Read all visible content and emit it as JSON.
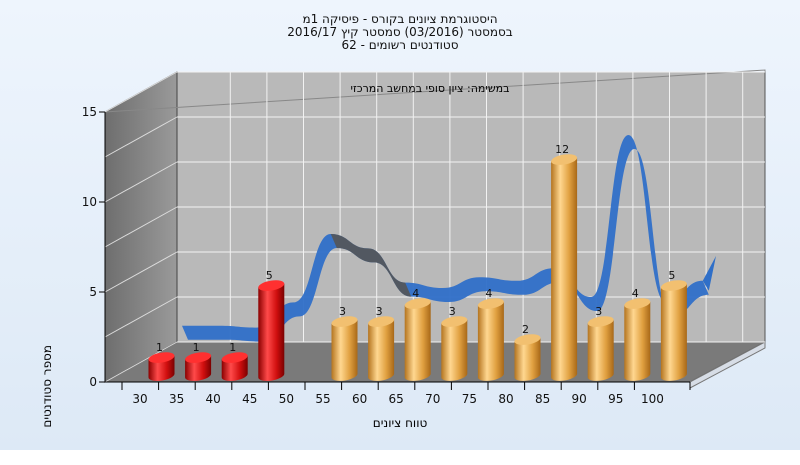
{
  "chart_data": {
    "type": "bar",
    "title": "היסטוגרמת ציונים בקורס - פיסיקה 1מ",
    "subtitle_lines": [
      "בסמסטר  (03/2016)  סמסטר קיץ 2016/17",
      "סטודנטים רשומים - 62"
    ],
    "annotation": "במשימה: ציון סופי במחשב המרכזי",
    "xlabel": "טווח ציונים",
    "ylabel": "מספר סטודנטים",
    "ylim": [
      0,
      15
    ],
    "yticks": [
      0,
      5,
      10,
      15
    ],
    "categories": [
      "30",
      "35",
      "40",
      "45",
      "50",
      "55",
      "60",
      "65",
      "70",
      "75",
      "80",
      "85",
      "90",
      "95",
      "100"
    ],
    "values": [
      1,
      1,
      1,
      5,
      null,
      3,
      3,
      4,
      3,
      4,
      2,
      12,
      3,
      4,
      5
    ],
    "bar_colors": [
      "#e11919",
      "#e11919",
      "#e11919",
      "#e11919",
      "",
      "#e8a94a",
      "#e8a94a",
      "#e8a94a",
      "#e8a94a",
      "#e8a94a",
      "#e8a94a",
      "#e8a94a",
      "#e8a94a",
      "#e8a94a",
      "#e8a94a"
    ],
    "curve": {
      "x": [
        30,
        35,
        40,
        45,
        50,
        55,
        60,
        65,
        70,
        75,
        80,
        85,
        90,
        95,
        100
      ],
      "y": [
        0.9,
        0.9,
        0.8,
        2.2,
        6.0,
        5.2,
        3.3,
        3.0,
        3.6,
        3.4,
        4.1,
        2.5,
        11.5,
        2.2,
        3.4
      ],
      "color": "#2f6fc8",
      "shadow_color": "#555555"
    },
    "grid": true
  },
  "colors": {
    "red_bar": "#e11919",
    "orange_bar": "#e8a94a",
    "wall": "#8a8a8a",
    "floor": "#7a7a7a",
    "plot_bg": "#b9b9b9"
  }
}
